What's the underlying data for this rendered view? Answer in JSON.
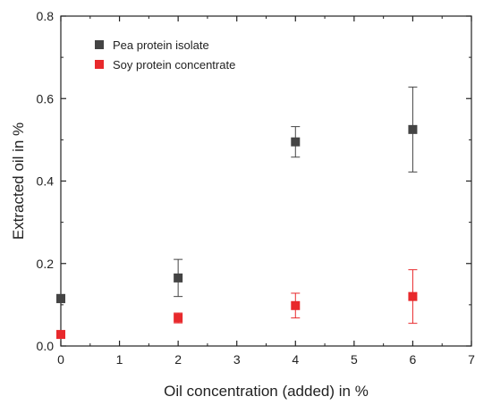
{
  "chart_data": {
    "type": "scatter",
    "title": "",
    "xlabel": "Oil concentration (added) in %",
    "ylabel": "Extracted oil in %",
    "xlim": [
      0,
      7
    ],
    "ylim": [
      0,
      0.8
    ],
    "xticks": [
      "0",
      "1",
      "2",
      "3",
      "4",
      "5",
      "6",
      "7"
    ],
    "yticks": [
      "0.0",
      "0.2",
      "0.4",
      "0.6",
      "0.8"
    ],
    "grid": false,
    "legend_position": "top-left",
    "series": [
      {
        "name": "Pea protein isolate",
        "color": "#444444",
        "x": [
          0,
          2,
          4,
          6
        ],
        "y": [
          0.115,
          0.165,
          0.495,
          0.525
        ],
        "error": [
          0.01,
          0.045,
          0.037,
          0.103
        ]
      },
      {
        "name": "Soy protein concentrate",
        "color": "#e8292c",
        "x": [
          0,
          2,
          4,
          6
        ],
        "y": [
          0.028,
          0.068,
          0.098,
          0.12
        ],
        "error": [
          0.005,
          0.012,
          0.03,
          0.065
        ]
      }
    ]
  }
}
